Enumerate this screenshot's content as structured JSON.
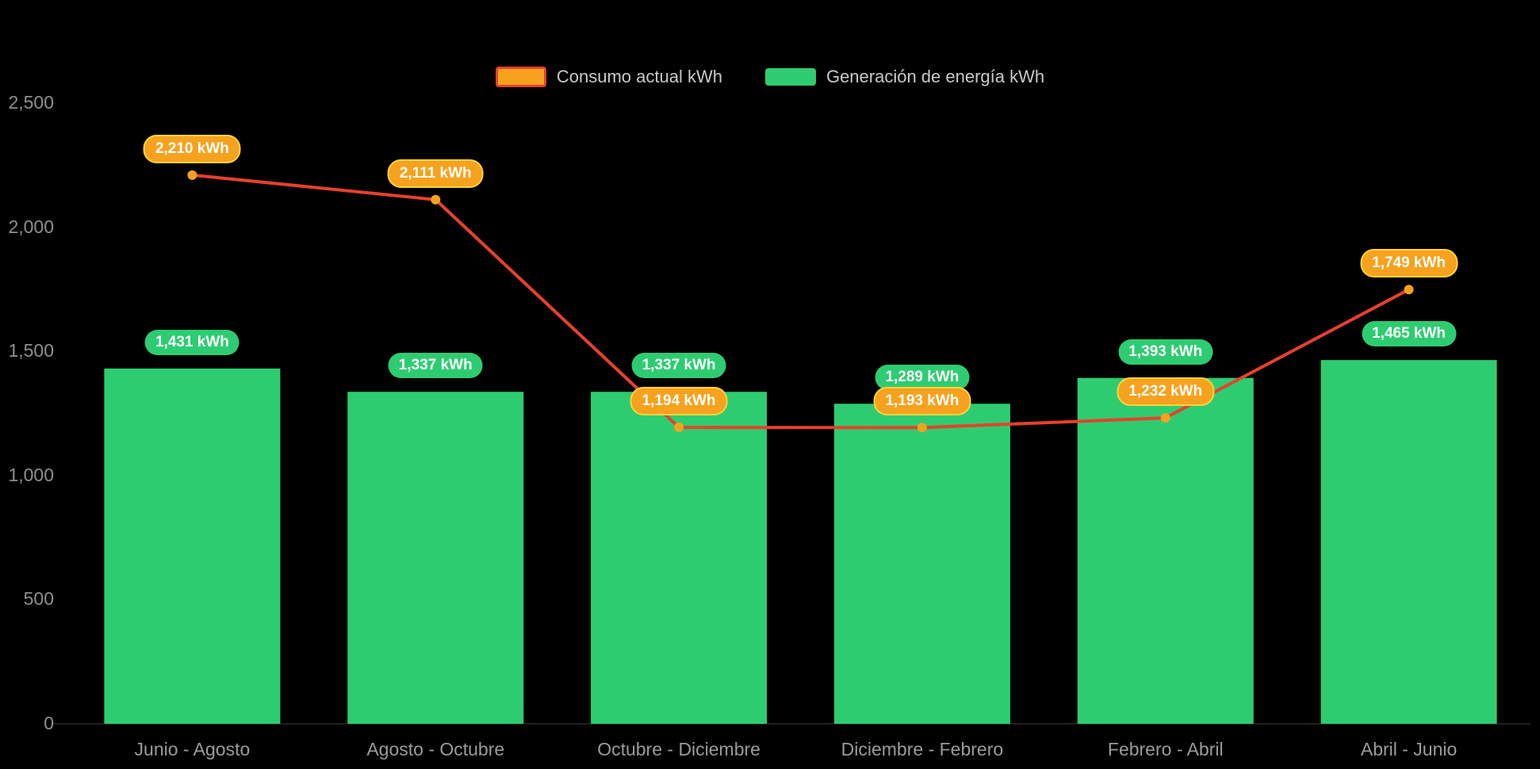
{
  "chart_data": {
    "type": "bar+line",
    "categories": [
      "Junio - Agosto",
      "Agosto - Octubre",
      "Octubre - Diciembre",
      "Diciembre - Febrero",
      "Febrero - Abril",
      "Abril - Junio"
    ],
    "series": [
      {
        "name": "Consumo actual kWh",
        "type": "line",
        "values": [
          2210,
          2111,
          1194,
          1193,
          1232,
          1749
        ],
        "labels": [
          "2,210 kWh",
          "2,111 kWh",
          "1,194 kWh",
          "1,193 kWh",
          "1,232 kWh",
          "1,749 kWh"
        ],
        "color": "#e8402c",
        "point_color": "#f6a21e",
        "label_border": "#ffd43b"
      },
      {
        "name": "Generación de energía kWh",
        "type": "bar",
        "values": [
          1431,
          1337,
          1337,
          1289,
          1393,
          1465
        ],
        "labels": [
          "1,431 kWh",
          "1,337 kWh",
          "1,337 kWh",
          "1,289 kWh",
          "1,393 kWh",
          "1,465 kWh"
        ],
        "color": "#2ecc71"
      }
    ],
    "ylim": [
      0,
      2500
    ],
    "yticks": [
      0,
      500,
      1000,
      1500,
      2000,
      2500
    ],
    "ytick_labels": [
      "0",
      "500",
      "1,000",
      "1,500",
      "2,000",
      "2,500"
    ],
    "grid": false,
    "legend_position": "top",
    "unit": "kWh",
    "background": "#000000",
    "axis_text_color": "#8f8f8f"
  }
}
